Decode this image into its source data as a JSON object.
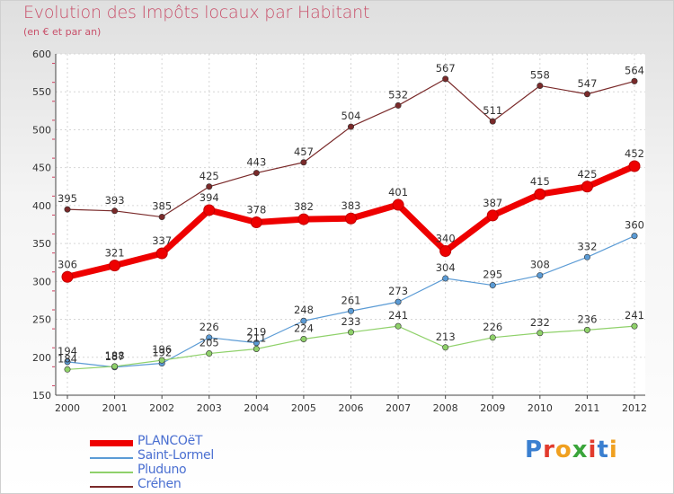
{
  "header": {
    "title": "Evolution des Impôts locaux par Habitant",
    "subtitle": "(en € et par an)"
  },
  "logo": {
    "text": "Proxiti",
    "colors": [
      "#3a7fd0",
      "#e23b2d",
      "#f0a020",
      "#3aa53a",
      "#e23b2d",
      "#3a7fd0",
      "#f0a020"
    ]
  },
  "chart_data": {
    "type": "line",
    "x": [
      2000,
      2001,
      2002,
      2003,
      2004,
      2005,
      2006,
      2007,
      2008,
      2009,
      2010,
      2011,
      2012
    ],
    "ylim": [
      150,
      600
    ],
    "yticks": [
      150,
      200,
      250,
      300,
      350,
      400,
      450,
      500,
      550,
      600
    ],
    "grid": true,
    "legend_position": "bottom-left",
    "series": [
      {
        "name": "Créhen",
        "color": "#7a2a2a",
        "values": [
          395,
          393,
          385,
          425,
          443,
          457,
          504,
          532,
          567,
          511,
          558,
          547,
          564
        ],
        "style": "thin",
        "labels": true
      },
      {
        "name": "Saint-Lormel",
        "color": "#5b9bd5",
        "values": [
          194,
          187,
          192,
          226,
          219,
          248,
          261,
          273,
          304,
          295,
          308,
          332,
          360
        ],
        "style": "thin",
        "labels": true
      },
      {
        "name": "Pluduno",
        "color": "#8fd16a",
        "values": [
          184,
          188,
          196,
          205,
          211,
          224,
          233,
          241,
          213,
          226,
          232,
          236,
          241
        ],
        "style": "thin",
        "labels": true
      },
      {
        "name": "PLANCOëT",
        "color": "#ee0000",
        "values": [
          306,
          321,
          337,
          394,
          378,
          382,
          383,
          401,
          340,
          387,
          415,
          425,
          452
        ],
        "style": "thick",
        "labels": true
      }
    ],
    "legend_order": [
      "PLANCOëT",
      "Saint-Lormel",
      "Pluduno",
      "Créhen"
    ]
  }
}
